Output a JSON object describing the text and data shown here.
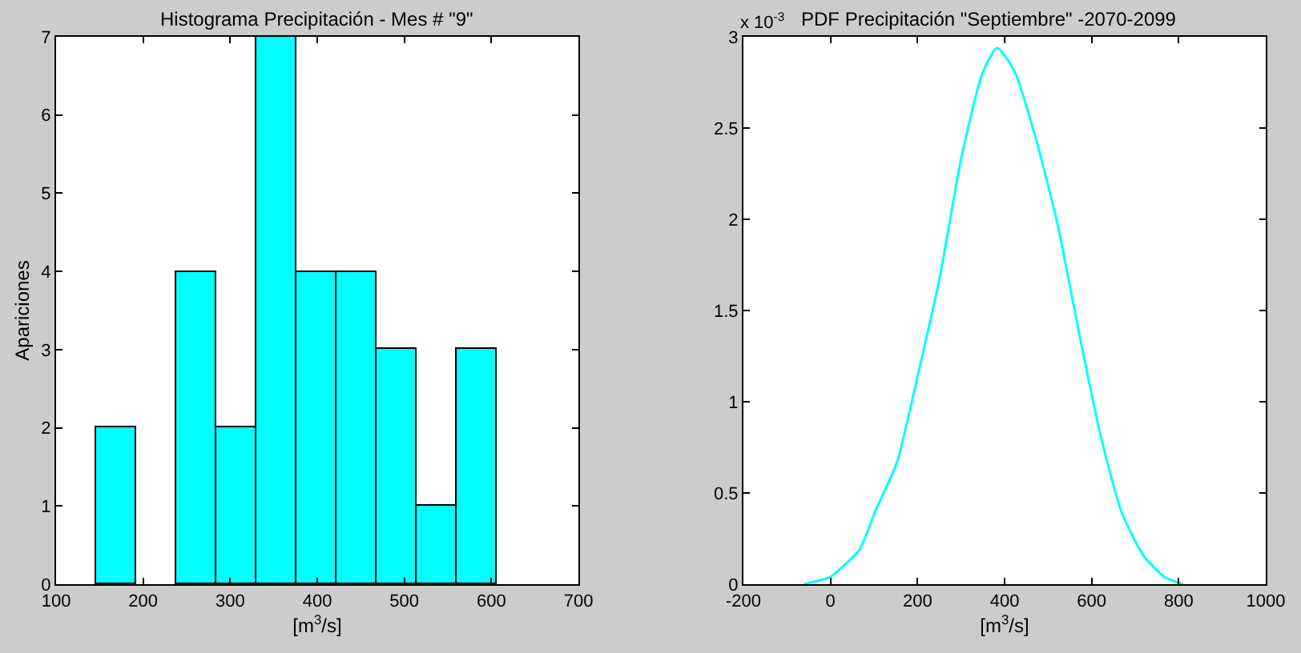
{
  "chart_data": [
    {
      "type": "histogram",
      "title": "Histograma Precipitación - Mes # \"9\"",
      "xlabel": "[m$^{3}$/s]",
      "ylabel": "Apariciones",
      "bins": [
        146,
        192,
        238,
        284,
        330,
        376,
        422,
        468,
        514,
        560,
        606
      ],
      "values": [
        2,
        0,
        4,
        2,
        7,
        4,
        4,
        3,
        1,
        3
      ],
      "color": "#00ffff",
      "xlim": [
        100,
        700
      ],
      "xticks": [
        100,
        200,
        300,
        400,
        500,
        600,
        700
      ],
      "ylim": [
        0,
        7
      ],
      "yticks": [
        0,
        1,
        2,
        3,
        4,
        5,
        6,
        7
      ]
    },
    {
      "type": "line",
      "title": "PDF Precipitación \"Septiembre\" -2070-2099",
      "xlabel": "[m$^{3}$/s]",
      "annotations": [
        "x 10$^{-3}$"
      ],
      "series": [
        {
          "color": "#00ffff",
          "x": [
            -61,
            0,
            30,
            67,
            103,
            153,
            202,
            251,
            300,
            349,
            383,
            423,
            472,
            521,
            570,
            619,
            668,
            718,
            767,
            810
          ],
          "values": [
            0,
            0.04,
            0.1,
            0.19,
            0.4,
            0.67,
            1.16,
            1.68,
            2.33,
            2.8,
            2.94,
            2.81,
            2.44,
            1.98,
            1.39,
            0.83,
            0.4,
            0.16,
            0.04,
            0
          ]
        }
      ],
      "xlim": [
        -200,
        1000
      ],
      "xticks": [
        -200,
        0,
        200,
        400,
        600,
        800,
        1000
      ],
      "ylim": [
        0,
        3
      ],
      "yticks": [
        0,
        0.5,
        1,
        1.5,
        2,
        2.5,
        3
      ],
      "marker": "none",
      "line_style": "solid"
    }
  ]
}
